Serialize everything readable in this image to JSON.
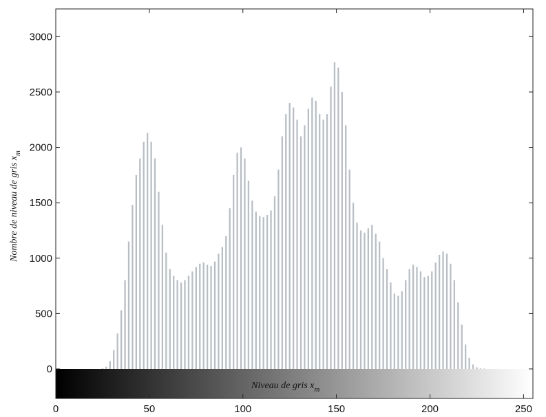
{
  "chart_data": {
    "type": "bar",
    "title": "",
    "xlabel": "Niveau de gris x",
    "xlabel_subscript": "m",
    "ylabel": "Nombre de niveau de gris x",
    "ylabel_subscript": "m",
    "xlim": [
      0,
      255
    ],
    "ylim": [
      0,
      3250
    ],
    "xticks": [
      "0",
      "50",
      "100",
      "150",
      "200",
      "250"
    ],
    "yticks": [
      "0",
      "500",
      "1000",
      "1500",
      "2000",
      "2500",
      "3000"
    ],
    "grid": false,
    "legend": "none",
    "bar_color": "#b8bec4",
    "colorbar": "grayscale 0-255 below x-axis",
    "x": [
      25,
      27,
      29,
      31,
      33,
      35,
      37,
      39,
      41,
      43,
      45,
      47,
      49,
      51,
      53,
      55,
      57,
      59,
      61,
      63,
      65,
      67,
      69,
      71,
      73,
      75,
      77,
      79,
      81,
      83,
      85,
      87,
      89,
      91,
      93,
      95,
      97,
      99,
      101,
      103,
      105,
      107,
      109,
      111,
      113,
      115,
      117,
      119,
      121,
      123,
      125,
      127,
      129,
      131,
      133,
      135,
      137,
      139,
      141,
      143,
      145,
      147,
      149,
      151,
      153,
      155,
      157,
      159,
      161,
      163,
      165,
      167,
      169,
      171,
      173,
      175,
      177,
      179,
      181,
      183,
      185,
      187,
      189,
      191,
      193,
      195,
      197,
      199,
      201,
      203,
      205,
      207,
      209,
      211,
      213,
      215,
      217,
      219,
      221,
      223,
      225,
      227,
      229
    ],
    "values": [
      5,
      20,
      70,
      170,
      320,
      530,
      800,
      1150,
      1480,
      1750,
      1900,
      2050,
      2130,
      2050,
      1900,
      1600,
      1300,
      1050,
      900,
      840,
      800,
      780,
      800,
      840,
      880,
      920,
      950,
      960,
      940,
      930,
      970,
      1040,
      1100,
      1200,
      1450,
      1750,
      1950,
      2000,
      1900,
      1700,
      1520,
      1420,
      1380,
      1370,
      1390,
      1430,
      1560,
      1800,
      2100,
      2300,
      2400,
      2360,
      2250,
      2100,
      2200,
      2350,
      2450,
      2420,
      2300,
      2250,
      2300,
      2550,
      2770,
      2720,
      2500,
      2200,
      1800,
      1500,
      1320,
      1250,
      1230,
      1270,
      1300,
      1220,
      1150,
      1000,
      900,
      780,
      680,
      660,
      700,
      800,
      900,
      940,
      920,
      880,
      830,
      840,
      880,
      960,
      1030,
      1060,
      1040,
      950,
      800,
      600,
      400,
      220,
      100,
      40,
      15,
      5,
      3
    ]
  }
}
